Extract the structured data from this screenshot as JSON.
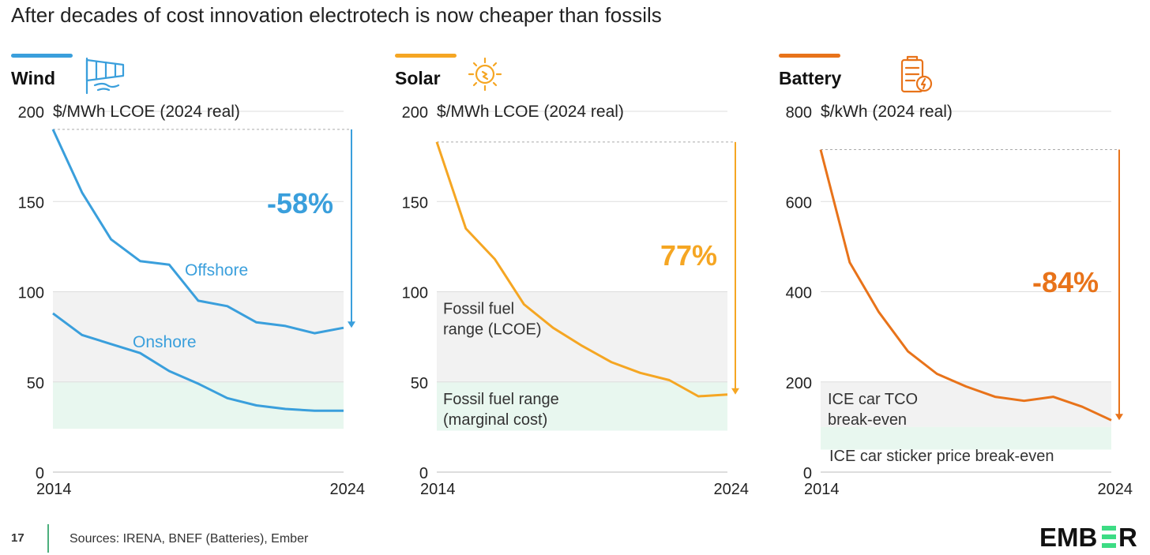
{
  "title": "After decades of cost innovation electrotech is now cheaper than fossils",
  "footer": {
    "page_number": "17",
    "sources": "Sources: IRENA, BNEF (Batteries), Ember",
    "logo_text": "EMBER",
    "logo_accent": "#3ddc84"
  },
  "panels": [
    {
      "title": "Wind",
      "icon": "windsock-icon",
      "color": "#3a9fdc"
    },
    {
      "title": "Solar",
      "icon": "sun-bulb-icon",
      "color": "#f5a623"
    },
    {
      "title": "Battery",
      "icon": "battery-icon",
      "color": "#e8731a"
    }
  ],
  "chart_data": [
    {
      "type": "line",
      "title": "Wind",
      "ylabel": "$/MWh LCOE (2024 real)",
      "ylim": [
        0,
        200
      ],
      "yticks": [
        0,
        50,
        100,
        150,
        200
      ],
      "x_tick_labels": [
        "2014",
        "2024"
      ],
      "x": [
        2014,
        2015,
        2016,
        2017,
        2018,
        2019,
        2020,
        2021,
        2022,
        2023,
        2024
      ],
      "series": [
        {
          "name": "Offshore",
          "color": "#3a9fdc",
          "values": [
            190,
            155,
            129,
            117,
            115,
            95,
            92,
            83,
            81,
            77,
            80
          ]
        },
        {
          "name": "Onshore",
          "color": "#3a9fdc",
          "values": [
            88,
            76,
            71,
            66,
            56,
            49,
            41,
            37,
            35,
            34,
            34
          ]
        }
      ],
      "bands": [
        {
          "from": 50,
          "to": 100,
          "color": "#f2f2f2",
          "label": ""
        },
        {
          "from": 24,
          "to": 50,
          "color": "#e8f7ef",
          "label": ""
        }
      ],
      "change_label": "-58%",
      "arrow": {
        "from": 190,
        "to": 80
      }
    },
    {
      "type": "line",
      "title": "Solar",
      "ylabel": "$/MWh LCOE (2024 real)",
      "ylim": [
        0,
        200
      ],
      "yticks": [
        0,
        50,
        100,
        150,
        200
      ],
      "x_tick_labels": [
        "2014",
        "2024"
      ],
      "x": [
        2014,
        2015,
        2016,
        2017,
        2018,
        2019,
        2020,
        2021,
        2022,
        2023,
        2024
      ],
      "series": [
        {
          "name": "",
          "color": "#f5a623",
          "values": [
            183,
            135,
            118,
            93,
            80,
            70,
            61,
            55,
            51,
            42,
            43
          ]
        }
      ],
      "bands": [
        {
          "from": 50,
          "to": 100,
          "color": "#f2f2f2",
          "label_lines": [
            "Fossil fuel",
            "range (LCOE)"
          ]
        },
        {
          "from": 23,
          "to": 50,
          "color": "#e8f7ef",
          "label_lines": [
            "Fossil fuel range",
            "(marginal cost)"
          ]
        }
      ],
      "change_label": "77%",
      "arrow": {
        "from": 183,
        "to": 43
      }
    },
    {
      "type": "line",
      "title": "Battery",
      "ylabel": "$/kWh (2024 real)",
      "ylim": [
        0,
        800
      ],
      "yticks": [
        0,
        200,
        400,
        600,
        800
      ],
      "x_tick_labels": [
        "2014",
        "2024"
      ],
      "x": [
        2014,
        2015,
        2016,
        2017,
        2018,
        2019,
        2020,
        2021,
        2022,
        2023,
        2024
      ],
      "series": [
        {
          "name": "",
          "color": "#e8731a",
          "values": [
            715,
            465,
            355,
            268,
            218,
            190,
            167,
            158,
            167,
            145,
            115
          ]
        }
      ],
      "bands": [
        {
          "from": 100,
          "to": 200,
          "color": "#f2f2f2",
          "label_lines": [
            "ICE car TCO",
            "break-even"
          ]
        },
        {
          "from": 50,
          "to": 100,
          "color": "#e8f7ef",
          "label_lines": [
            "ICE car sticker price break-even"
          ]
        }
      ],
      "change_label": "-84%",
      "arrow": {
        "from": 715,
        "to": 115
      }
    }
  ]
}
